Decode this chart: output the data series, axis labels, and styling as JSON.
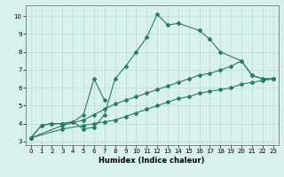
{
  "xlabel": "Humidex (Indice chaleur)",
  "bg_color": "#d8f0ee",
  "grid_color": "#b8d8d4",
  "line_color": "#2a7a68",
  "xlim": [
    -0.5,
    23.5
  ],
  "ylim": [
    2.8,
    10.6
  ],
  "xticks": [
    0,
    1,
    2,
    3,
    4,
    5,
    6,
    7,
    8,
    9,
    10,
    11,
    12,
    13,
    14,
    15,
    16,
    17,
    18,
    19,
    20,
    21,
    22,
    23
  ],
  "yticks": [
    3,
    4,
    5,
    6,
    7,
    8,
    9,
    10
  ],
  "series1_x": [
    0,
    1,
    2,
    3,
    4,
    5,
    6,
    7,
    8,
    9,
    10,
    11,
    12,
    13,
    14,
    16,
    17,
    18,
    20,
    21,
    22,
    23
  ],
  "series1_y": [
    3.2,
    3.9,
    4.0,
    4.0,
    4.1,
    3.7,
    3.8,
    4.5,
    6.5,
    7.2,
    8.0,
    8.8,
    10.1,
    9.5,
    9.6,
    9.2,
    8.7,
    8.0,
    7.5,
    6.7,
    6.5,
    6.5
  ],
  "series2_x": [
    0,
    1,
    2,
    3,
    4,
    5,
    6,
    7
  ],
  "series2_y": [
    3.2,
    3.9,
    4.0,
    4.0,
    4.1,
    4.5,
    6.5,
    5.3
  ],
  "series3_x": [
    0,
    3,
    5,
    6,
    7,
    8,
    9,
    10,
    11,
    12,
    13,
    14,
    15,
    16,
    17,
    18,
    19,
    20,
    21,
    22,
    23
  ],
  "series3_y": [
    3.2,
    3.9,
    4.2,
    4.5,
    4.8,
    5.1,
    5.3,
    5.5,
    5.7,
    5.9,
    6.1,
    6.3,
    6.5,
    6.7,
    6.8,
    7.0,
    7.2,
    7.5,
    6.7,
    6.5,
    6.5
  ],
  "series4_x": [
    0,
    3,
    5,
    6,
    7,
    8,
    9,
    10,
    11,
    12,
    13,
    14,
    15,
    16,
    17,
    18,
    19,
    20,
    21,
    22,
    23
  ],
  "series4_y": [
    3.2,
    3.7,
    3.9,
    4.0,
    4.1,
    4.2,
    4.4,
    4.6,
    4.8,
    5.0,
    5.2,
    5.4,
    5.5,
    5.7,
    5.8,
    5.9,
    6.0,
    6.2,
    6.3,
    6.4,
    6.5
  ]
}
